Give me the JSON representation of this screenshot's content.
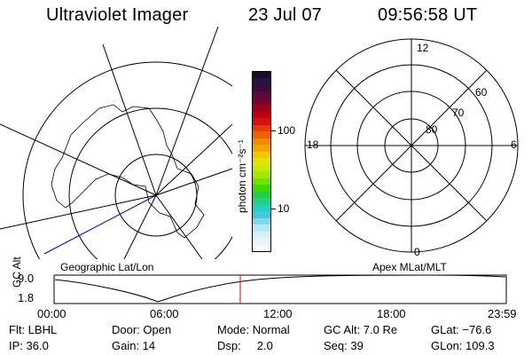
{
  "header": {
    "instrument": "Ultraviolet Imager",
    "date": "23 Jul 07",
    "time": "09:56:58 UT"
  },
  "left_panel": {
    "caption": "Geographic Lat/Lon"
  },
  "right_panel": {
    "caption": "Apex MLat/MLT",
    "lat_labels": [
      "80",
      "70",
      "60"
    ],
    "mlt_labels": {
      "top": "12",
      "left": "18",
      "right": "6",
      "bottom": "0"
    }
  },
  "colorbar": {
    "unit_label": "photon cm⁻²s⁻¹",
    "tick_labels": [
      "100",
      "10"
    ],
    "colors": [
      "#1a0a2e",
      "#2a1240",
      "#3b0b3b",
      "#5a0a3a",
      "#7a0030",
      "#a00020",
      "#c00010",
      "#d81010",
      "#e83a0a",
      "#f06000",
      "#f08800",
      "#f0a800",
      "#f0c800",
      "#e8e000",
      "#c8e800",
      "#a0e800",
      "#70e000",
      "#40d800",
      "#20d040",
      "#20d090",
      "#20d0c0",
      "#40c8e0",
      "#80d8e8",
      "#b8e8f0",
      "#d8f0f4",
      "#e8f4f6",
      "#f4f8f8"
    ]
  },
  "altitude_plot": {
    "ylabel": "GC Alt",
    "y_ticks": [
      "9.0",
      "1.8"
    ],
    "x_ticks": [
      "00:00",
      "06:00",
      "12:00",
      "18:00",
      "23:59"
    ],
    "marker_time": "09:57"
  },
  "status": {
    "filter": "Flt: LBHL",
    "ip": "IP: 36.0",
    "door": "Door: Open",
    "gain": "Gain: 14",
    "mode": "Mode: Normal",
    "dsp": "Dsp:     2.0",
    "gc_alt": "GC Alt: 7.0 Re",
    "seq": "Seq: 39",
    "glat": "GLat: −76.6",
    "glon": "GLon: 109.3"
  }
}
